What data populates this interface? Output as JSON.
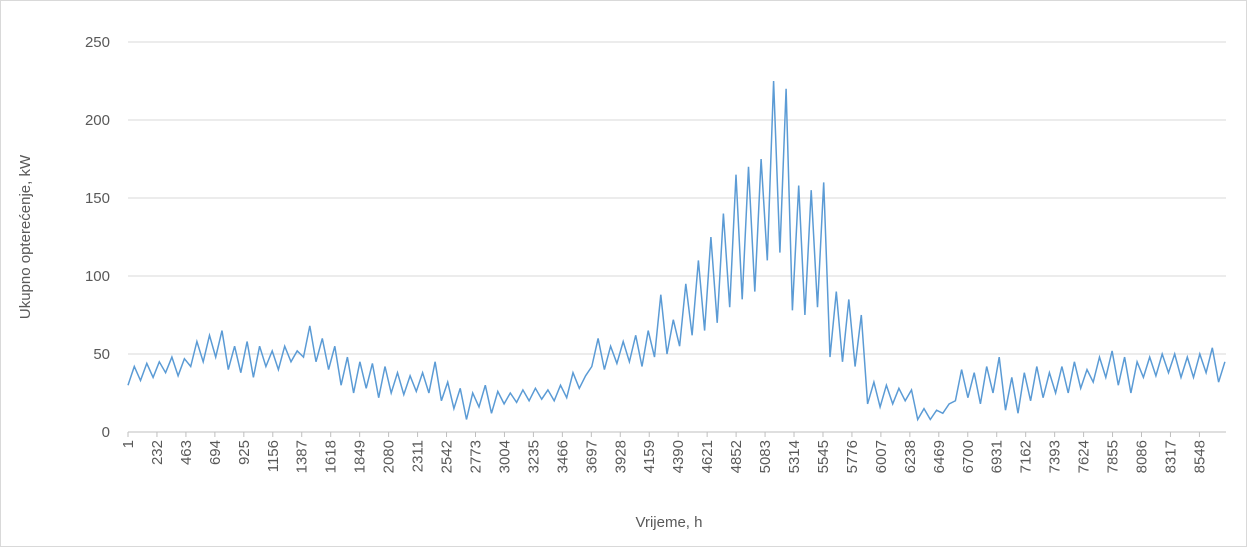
{
  "chart_data": {
    "type": "line",
    "x_label": "Vrijeme, h",
    "y_label": "Ukupno opterećenje, kW",
    "color": "#5b9bd5",
    "grid": true,
    "xlim": [
      1,
      8760
    ],
    "ylim": [
      0,
      250
    ],
    "yticks": [
      0,
      50,
      100,
      150,
      200,
      250
    ],
    "xticks": [
      1,
      232,
      463,
      694,
      925,
      1156,
      1387,
      1618,
      1849,
      2080,
      2311,
      2542,
      2773,
      3004,
      3235,
      3466,
      3697,
      3928,
      4159,
      4390,
      4621,
      4852,
      5083,
      5314,
      5545,
      5776,
      6007,
      6238,
      6469,
      6700,
      6931,
      7162,
      7393,
      7624,
      7855,
      8086,
      8317,
      8548
    ],
    "x": [
      1,
      51,
      101,
      151,
      201,
      251,
      301,
      351,
      401,
      451,
      501,
      551,
      601,
      651,
      701,
      751,
      801,
      851,
      901,
      951,
      1001,
      1051,
      1101,
      1151,
      1201,
      1251,
      1301,
      1351,
      1401,
      1451,
      1501,
      1551,
      1601,
      1651,
      1701,
      1751,
      1801,
      1851,
      1901,
      1951,
      2001,
      2051,
      2101,
      2151,
      2201,
      2251,
      2301,
      2351,
      2401,
      2451,
      2501,
      2551,
      2601,
      2651,
      2701,
      2751,
      2801,
      2851,
      2901,
      2951,
      3001,
      3051,
      3101,
      3151,
      3201,
      3251,
      3301,
      3351,
      3401,
      3451,
      3501,
      3551,
      3601,
      3651,
      3701,
      3751,
      3801,
      3851,
      3901,
      3951,
      4001,
      4051,
      4101,
      4151,
      4201,
      4251,
      4301,
      4351,
      4401,
      4451,
      4501,
      4551,
      4601,
      4651,
      4701,
      4751,
      4801,
      4851,
      4901,
      4951,
      5001,
      5051,
      5101,
      5151,
      5201,
      5251,
      5301,
      5351,
      5401,
      5451,
      5501,
      5551,
      5601,
      5651,
      5701,
      5751,
      5801,
      5851,
      5901,
      5951,
      6001,
      6051,
      6101,
      6151,
      6201,
      6251,
      6301,
      6351,
      6401,
      6451,
      6501,
      6551,
      6601,
      6651,
      6701,
      6751,
      6801,
      6851,
      6901,
      6951,
      7001,
      7051,
      7101,
      7151,
      7201,
      7251,
      7301,
      7351,
      7401,
      7451,
      7501,
      7551,
      7601,
      7651,
      7701,
      7751,
      7801,
      7851,
      7901,
      7951,
      8001,
      8051,
      8101,
      8151,
      8201,
      8251,
      8301,
      8351,
      8401,
      8451,
      8501,
      8551,
      8601,
      8651,
      8701,
      8751
    ],
    "values": [
      30,
      42,
      33,
      44,
      35,
      45,
      38,
      48,
      36,
      47,
      42,
      58,
      45,
      62,
      48,
      65,
      40,
      55,
      38,
      58,
      35,
      55,
      42,
      52,
      40,
      55,
      45,
      52,
      48,
      68,
      45,
      60,
      40,
      55,
      30,
      48,
      25,
      45,
      28,
      44,
      22,
      42,
      25,
      38,
      24,
      36,
      26,
      38,
      25,
      45,
      20,
      32,
      15,
      28,
      8,
      25,
      16,
      30,
      12,
      26,
      18,
      25,
      19,
      27,
      20,
      28,
      21,
      27,
      20,
      30,
      22,
      38,
      28,
      36,
      42,
      60,
      40,
      55,
      44,
      58,
      45,
      62,
      42,
      65,
      48,
      88,
      50,
      72,
      55,
      95,
      62,
      110,
      65,
      125,
      70,
      140,
      80,
      165,
      85,
      170,
      90,
      175,
      110,
      225,
      115,
      220,
      78,
      158,
      75,
      155,
      80,
      160,
      48,
      90,
      45,
      85,
      42,
      75,
      18,
      32,
      16,
      30,
      18,
      28,
      20,
      27,
      8,
      15,
      8,
      14,
      12,
      18,
      20,
      40,
      22,
      38,
      18,
      42,
      25,
      48,
      14,
      35,
      12,
      38,
      20,
      42,
      22,
      38,
      25,
      42,
      25,
      45,
      28,
      40,
      32,
      48,
      35,
      52,
      30,
      48,
      25,
      45,
      35,
      48,
      36,
      50,
      38,
      50,
      35,
      48,
      35,
      50,
      38,
      54,
      32,
      45
    ]
  }
}
